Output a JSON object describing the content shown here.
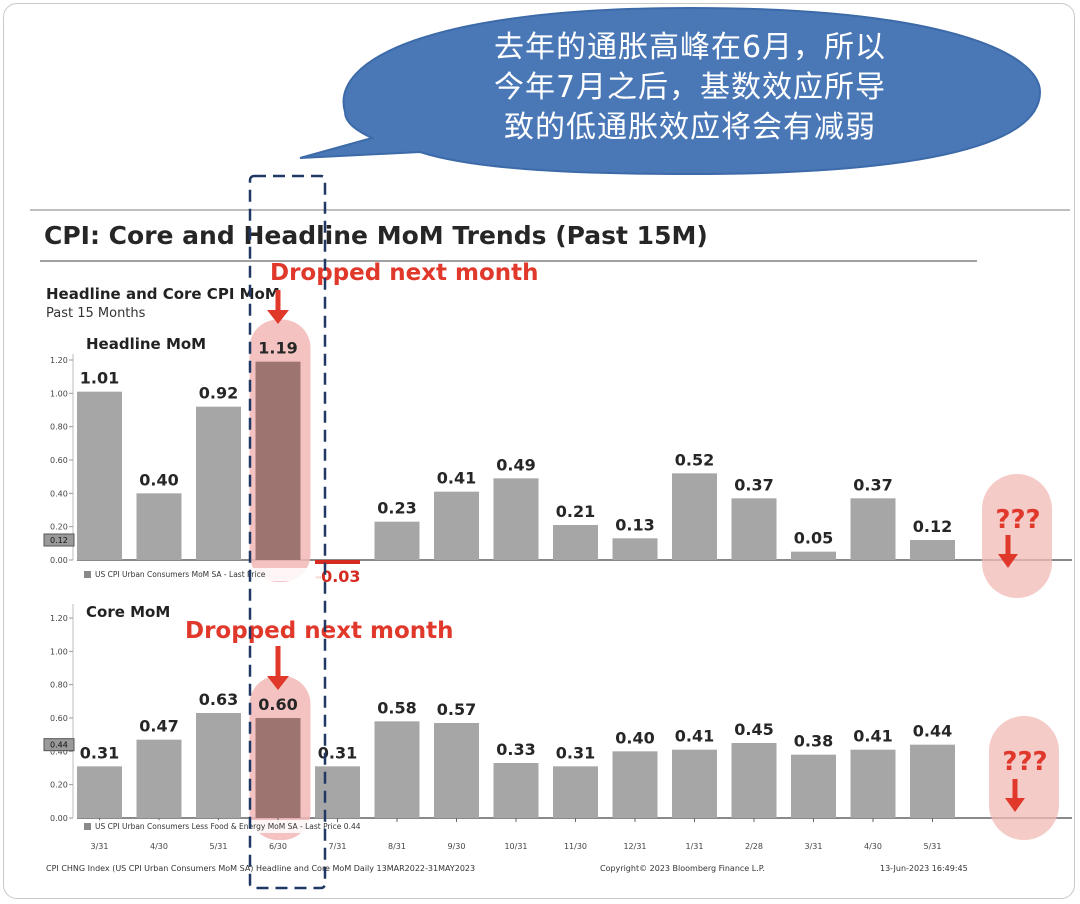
{
  "callout": {
    "lines": [
      "去年的通胀高峰在6月，所以",
      "今年7月之后，基数效应所导",
      "致的低通胀效应将会有减弱"
    ]
  },
  "page_title": "CPI: Core and Headline MoM Trends (Past 15M)",
  "chart_header": {
    "title": "Headline and Core CPI MoM",
    "subtitle": "Past 15 Months"
  },
  "chart_data": [
    {
      "type": "bar",
      "title": "Headline MoM",
      "categories": [
        "3/31",
        "4/30",
        "5/31",
        "6/30",
        "7/31",
        "8/31",
        "9/30",
        "10/31",
        "11/30",
        "12/31",
        "1/31",
        "2/28",
        "3/31",
        "4/30",
        "5/31"
      ],
      "values": [
        1.01,
        0.4,
        0.92,
        1.19,
        -0.03,
        0.23,
        0.41,
        0.49,
        0.21,
        0.13,
        0.52,
        0.37,
        0.05,
        0.37,
        0.12
      ],
      "value_labels": [
        "1.01",
        "0.40",
        "0.92",
        "1.19",
        "-0.03",
        "0.23",
        "0.41",
        "0.49",
        "0.21",
        "0.13",
        "0.52",
        "0.37",
        "0.05",
        "0.37",
        "0.12"
      ],
      "y_ticks": [
        "1.20",
        "1.00",
        "0.80",
        "0.60",
        "0.40",
        "0.20",
        "0.00"
      ],
      "ylim": [
        0,
        1.3
      ],
      "last_price_tag": "0.12",
      "legend": "US CPI Urban Consumers MoM SA - Last Price",
      "legend_placement": "bottom-left",
      "highlight_index": 3,
      "annotation": "Dropped next month",
      "question": "???"
    },
    {
      "type": "bar",
      "title": "Core MoM",
      "categories": [
        "3/31",
        "4/30",
        "5/31",
        "6/30",
        "7/31",
        "8/31",
        "9/30",
        "10/31",
        "11/30",
        "12/31",
        "1/31",
        "2/28",
        "3/31",
        "4/30",
        "5/31"
      ],
      "values": [
        0.31,
        0.47,
        0.63,
        0.6,
        0.31,
        0.58,
        0.57,
        0.33,
        0.31,
        0.4,
        0.41,
        0.45,
        0.38,
        0.41,
        0.44
      ],
      "value_labels": [
        "0.31",
        "0.47",
        "0.63",
        "0.60",
        "0.31",
        "0.58",
        "0.57",
        "0.33",
        "0.31",
        "0.40",
        "0.41",
        "0.45",
        "0.38",
        "0.41",
        "0.44"
      ],
      "y_ticks": [
        "1.20",
        "1.00",
        "0.80",
        "0.60",
        "0.40",
        "0.20",
        "0.00"
      ],
      "ylim": [
        0,
        1.3
      ],
      "last_price_tag": "0.44",
      "legend": "US CPI Urban Consumers Less Food & Energy MoM SA - Last Price 0.44",
      "legend_placement": "bottom-left",
      "highlight_index": 3,
      "annotation": "Dropped next month",
      "question": "???"
    }
  ],
  "footer": {
    "left": "CPI CHNG Index (US CPI Urban Consumers MoM SA) Headline and Core MoM  Daily 13MAR2022-31MAY2023",
    "center": "Copyright© 2023 Bloomberg Finance L.P.",
    "right": "13-Jun-2023 16:49:45"
  },
  "colors": {
    "bar": "#a6a6a6",
    "negative_bar": "#d42a20",
    "highlight": "#f2b9b6",
    "highlight_bar": "#9e7471",
    "annotation": "#e0392b",
    "bubble": "#4a78b7",
    "dashed_box": "#1f3864"
  }
}
